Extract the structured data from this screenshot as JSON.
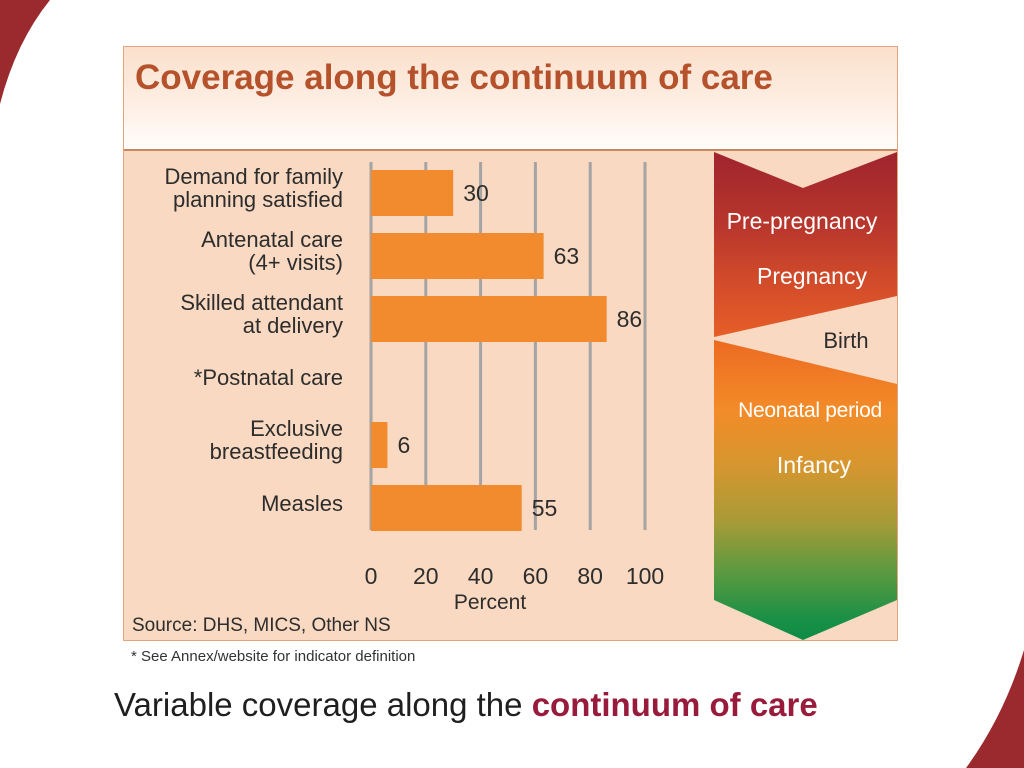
{
  "slide": {
    "footnote": "* See Annex/website for indicator definition",
    "caption": {
      "plain": "Variable coverage along the ",
      "emphasis": "continuum of care"
    },
    "colors": {
      "corner_accent": "#9a2a2e",
      "caption_emphasis": "#991b3c",
      "figure_title": "#b5522b",
      "figure_background": "#f9d9c1"
    }
  },
  "chart_data": {
    "type": "bar",
    "orientation": "horizontal",
    "title": "Coverage along the continuum of care",
    "categories": [
      [
        "Demand for family",
        "planning satisfied"
      ],
      [
        "Antenatal care",
        "(4+ visits)"
      ],
      [
        "Skilled attendant",
        "at delivery"
      ],
      [
        "*Postnatal care"
      ],
      [
        "Exclusive",
        "breastfeeding"
      ],
      [
        "Measles"
      ]
    ],
    "values": [
      30,
      63,
      86,
      null,
      6,
      55
    ],
    "xlabel": "Percent",
    "xlim": [
      0,
      100
    ],
    "xticks": [
      0,
      20,
      40,
      60,
      80,
      100
    ],
    "grid": true,
    "bar_color": "#f28a2e",
    "source": "Source: DHS, MICS, Other NS"
  },
  "continuum": {
    "stages": [
      "Pre-pregnancy",
      "Pregnancy",
      "Birth",
      "Neonatal period",
      "Infancy"
    ],
    "colors": {
      "start": "#9f242d",
      "middle": "#f38b28",
      "end": "#0d8b47"
    }
  }
}
